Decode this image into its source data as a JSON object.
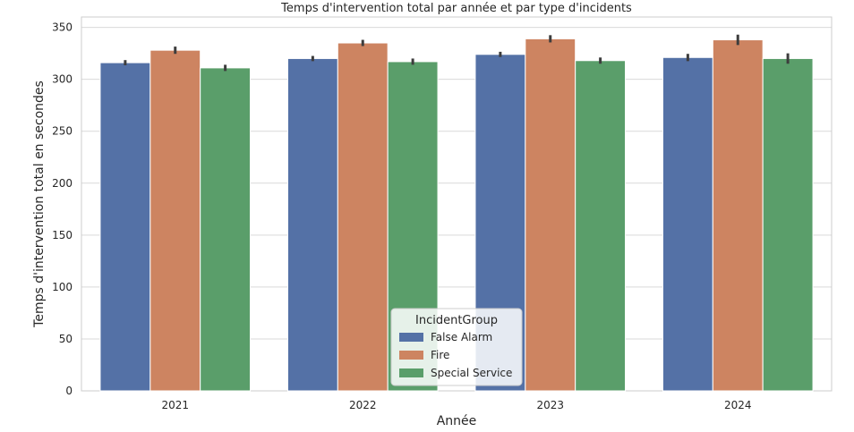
{
  "chart_data": {
    "type": "bar",
    "title": "Temps d'intervention total par année et par type d'incidents",
    "xlabel": "Année",
    "ylabel": "Temps d'intervention total en secondes",
    "categories": [
      "2021",
      "2022",
      "2023",
      "2024"
    ],
    "yticks": [
      0,
      50,
      100,
      150,
      200,
      250,
      300,
      350
    ],
    "ylim": [
      0,
      360
    ],
    "grid": true,
    "legend": {
      "title": "IncidentGroup",
      "position": "lower-center"
    },
    "series": [
      {
        "name": "False Alarm",
        "color": "#5471a6",
        "values": [
          316,
          320,
          324,
          321
        ],
        "error": [
          2.5,
          2.5,
          2.5,
          3.5
        ]
      },
      {
        "name": "Fire",
        "color": "#cd8461",
        "values": [
          328,
          335,
          339,
          338
        ],
        "error": [
          3.5,
          3,
          3.5,
          5
        ]
      },
      {
        "name": "Special Service",
        "color": "#5a9e6a",
        "values": [
          311,
          317,
          318,
          320
        ],
        "error": [
          3,
          3,
          3,
          5
        ]
      }
    ]
  }
}
